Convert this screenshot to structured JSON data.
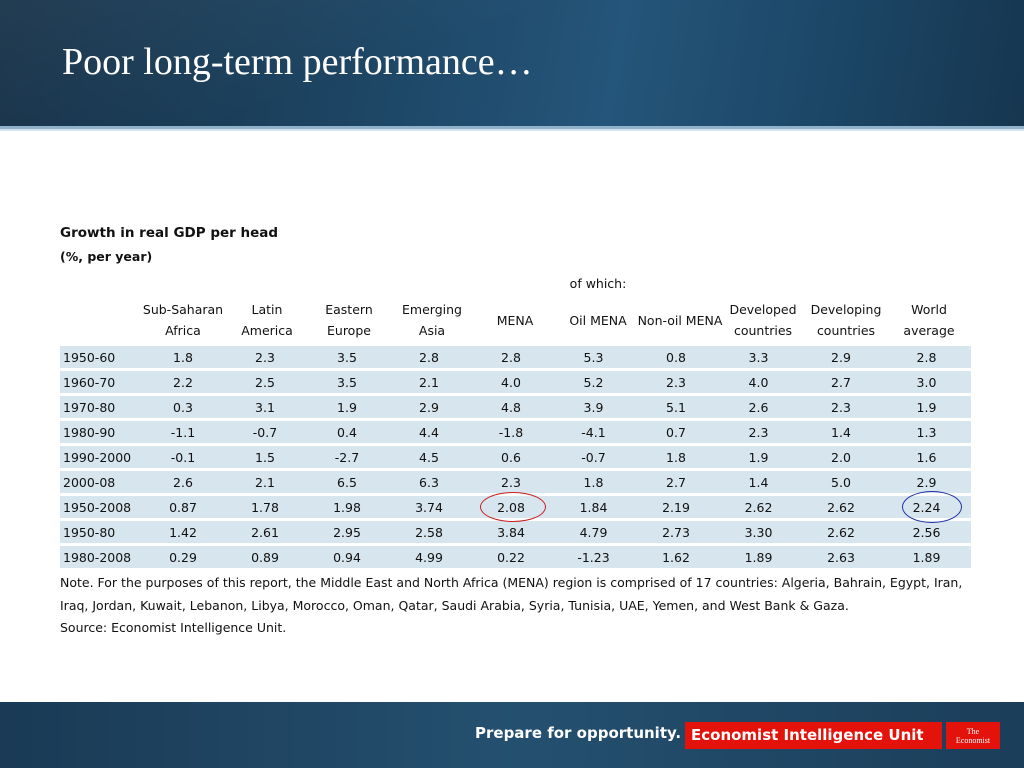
{
  "slide": {
    "title": "Poor long-term performance…"
  },
  "table": {
    "title": "Growth in real GDP per head",
    "subtitle": "(%, per year)",
    "of_which_label": "of which:",
    "headers": [
      {
        "line1": "Sub-Saharan",
        "line2": "Africa"
      },
      {
        "line1": "Latin",
        "line2": "America"
      },
      {
        "line1": "Eastern",
        "line2": "Europe"
      },
      {
        "line1": "Emerging",
        "line2": "Asia"
      },
      {
        "line1": "MENA",
        "line2": ""
      },
      {
        "line1": "Oil MENA",
        "line2": ""
      },
      {
        "line1": "Non-oil MENA",
        "line2": ""
      },
      {
        "line1": "Developed",
        "line2": "countries"
      },
      {
        "line1": "Developing",
        "line2": "countries"
      },
      {
        "line1": "World",
        "line2": "average"
      }
    ],
    "rows": [
      {
        "period": "1950-60",
        "values": [
          "1.8",
          "2.3",
          "3.5",
          "2.8",
          "2.8",
          "5.3",
          "0.8",
          "3.3",
          "2.9",
          "2.8"
        ]
      },
      {
        "period": "1960-70",
        "values": [
          "2.2",
          "2.5",
          "3.5",
          "2.1",
          "4.0",
          "5.2",
          "2.3",
          "4.0",
          "2.7",
          "3.0"
        ]
      },
      {
        "period": "1970-80",
        "values": [
          "0.3",
          "3.1",
          "1.9",
          "2.9",
          "4.8",
          "3.9",
          "5.1",
          "2.6",
          "2.3",
          "1.9"
        ]
      },
      {
        "period": "1980-90",
        "values": [
          "-1.1",
          "-0.7",
          "0.4",
          "4.4",
          "-1.8",
          "-4.1",
          "0.7",
          "2.3",
          "1.4",
          "1.3"
        ]
      },
      {
        "period": "1990-2000",
        "values": [
          "-0.1",
          "1.5",
          "-2.7",
          "4.5",
          "0.6",
          "-0.7",
          "1.8",
          "1.9",
          "2.0",
          "1.6"
        ]
      },
      {
        "period": "2000-08",
        "values": [
          "2.6",
          "2.1",
          "6.5",
          "6.3",
          "2.3",
          "1.8",
          "2.7",
          "1.4",
          "5.0",
          "2.9"
        ]
      },
      {
        "period": "1950-2008",
        "values": [
          "0.87",
          "1.78",
          "1.98",
          "3.74",
          "2.08",
          "1.84",
          "2.19",
          "2.62",
          "2.62",
          "2.24"
        ]
      },
      {
        "period": "1950-80",
        "values": [
          "1.42",
          "2.61",
          "2.95",
          "2.58",
          "3.84",
          "4.79",
          "2.73",
          "3.30",
          "2.62",
          "2.56"
        ]
      },
      {
        "period": "1980-2008",
        "values": [
          "0.29",
          "0.89",
          "0.94",
          "4.99",
          "0.22",
          "-1.23",
          "1.62",
          "1.89",
          "2.63",
          "1.89"
        ]
      }
    ],
    "note_line1": "Note. For the purposes of this report, the Middle East and North Africa (MENA) region is comprised of 17 countries: Algeria, Bahrain, Egypt, Iran,",
    "note_line2": "Iraq, Jordan, Kuwait, Lebanon, Libya, Morocco, Oman, Qatar, Saudi Arabia, Syria, Tunisia, UAE, Yemen, and West Bank & Gaza.",
    "source": "Source: Economist Intelligence Unit."
  },
  "footer": {
    "slogan": "Prepare for opportunity.",
    "eiu_label": "Economist Intelligence Unit",
    "logo_line1": "The",
    "logo_line2": "Economist"
  },
  "colors": {
    "row_fill": "#d6e5ee",
    "highlight_red": "#cc1f1f",
    "highlight_blue": "#1f2fa8",
    "brand_red": "#e3120b"
  }
}
